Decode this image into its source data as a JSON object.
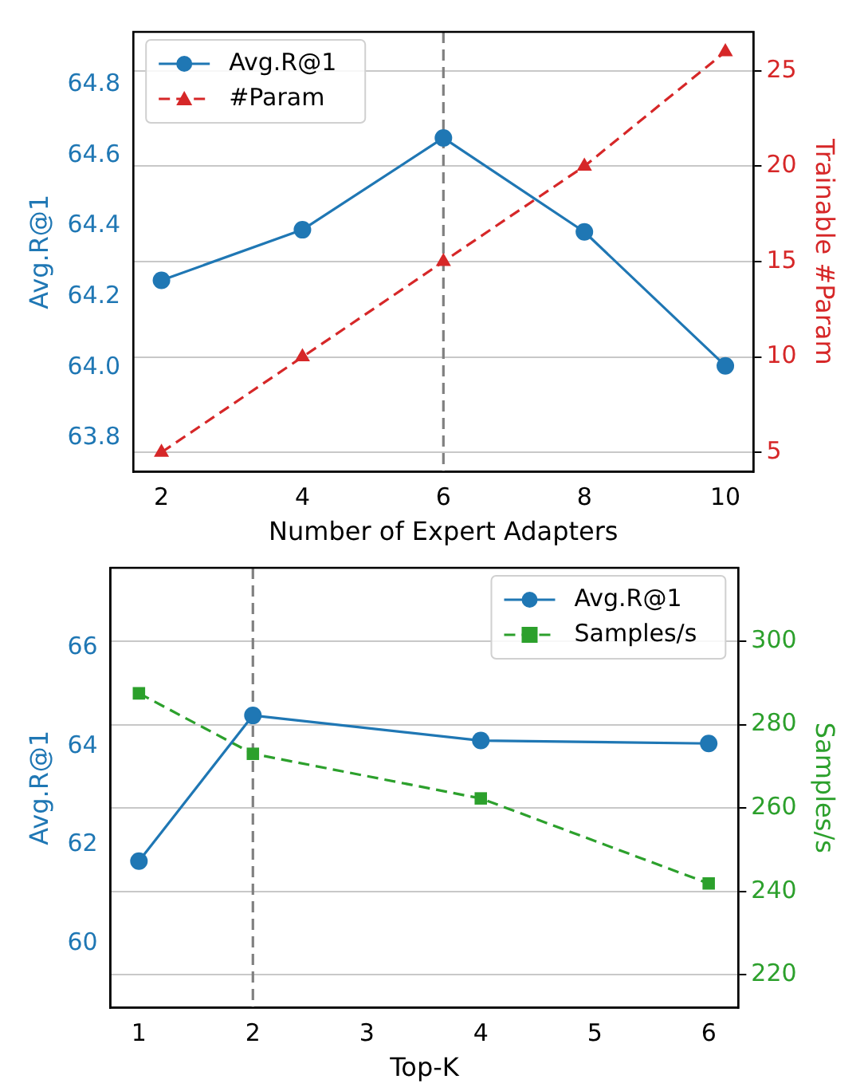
{
  "chart_data": [
    {
      "type": "line",
      "xlabel": "Number of Expert Adapters",
      "ylabel": "Avg.R@1",
      "y2label": "Trainable #Param",
      "x": [
        2,
        4,
        6,
        8,
        10
      ],
      "xlim": [
        1.6,
        10.4
      ],
      "xticks": [
        2,
        4,
        6,
        8,
        10
      ],
      "ylim": [
        63.705,
        64.95
      ],
      "yticks": [
        63.8,
        {
          "value": 64,
          "label": "64.0"
        },
        64.2,
        64.4,
        64.6,
        64.8
      ],
      "y2lim": [
        3.98,
        27.04
      ],
      "y2ticks": [
        5,
        10,
        15,
        20,
        25
      ],
      "grid": "y2",
      "legend": "top left",
      "ref_lines": [
        {
          "axis": "x",
          "value": 6,
          "color": "#808080",
          "line_style": "dashed"
        }
      ],
      "series": [
        {
          "name": "Avg.R@1",
          "color": "#1f77b4",
          "values": [
            64.247,
            64.39,
            64.65,
            64.384,
            64.005
          ],
          "marker": "circle",
          "line_style": "solid"
        },
        {
          "name": "#Param",
          "color": "#d62728",
          "values": [
            5,
            10,
            15,
            20,
            26
          ],
          "marker": "triangle",
          "line_style": "dashed",
          "axis": "y2"
        }
      ]
    },
    {
      "type": "line",
      "xlabel": "Top-K",
      "ylabel": "Avg.R@1",
      "y2label": "Samples/s",
      "x": [
        1,
        2,
        4,
        6
      ],
      "xlim": [
        0.75,
        6.26
      ],
      "xticks": [
        1,
        2,
        3,
        4,
        5,
        6
      ],
      "ylim": [
        58.69,
        67.63
      ],
      "yticks": [
        60,
        62,
        64,
        66
      ],
      "y2lim": [
        212.1,
        317.6
      ],
      "y2ticks": [
        220,
        240,
        260,
        280,
        300
      ],
      "grid": "y2",
      "legend": "top right",
      "ref_lines": [
        {
          "axis": "x",
          "value": 2,
          "color": "#808080",
          "line_style": "dashed"
        }
      ],
      "series": [
        {
          "name": "Avg.R@1",
          "color": "#1f77b4",
          "values": [
            61.67,
            64.63,
            64.12,
            64.06
          ],
          "marker": "circle",
          "line_style": "solid"
        },
        {
          "name": "Samples/s",
          "color": "#2ca02c",
          "values": [
            287.5,
            273.0,
            262.3,
            241.9
          ],
          "marker": "square",
          "line_style": "dashed",
          "axis": "y2"
        }
      ]
    }
  ]
}
